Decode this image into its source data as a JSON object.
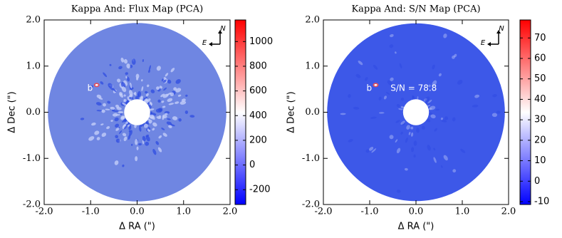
{
  "chart_data": [
    {
      "type": "image",
      "title": "Kappa And: Flux Map (PCA)",
      "xlabel": "Δ RA (\")",
      "ylabel": "Δ Dec (\")",
      "xlim": [
        -2,
        2
      ],
      "ylim": [
        -2,
        2
      ],
      "xticks": [
        {
          "value": -2,
          "label": "-2.0"
        },
        {
          "value": -1,
          "label": "-1.0"
        },
        {
          "value": 0,
          "label": "0.0"
        },
        {
          "value": 1,
          "label": "1.0"
        },
        {
          "value": 2,
          "label": "2.0"
        }
      ],
      "yticks": [
        {
          "value": -2,
          "label": "-2.0"
        },
        {
          "value": -1,
          "label": "-1.0"
        },
        {
          "value": 0,
          "label": "0.0"
        },
        {
          "value": 1,
          "label": "1.0"
        },
        {
          "value": 2,
          "label": "2.0"
        }
      ],
      "color": "#6f86e2",
      "colormap": [
        "#0000ff",
        "#ffffff",
        "#ff0000"
      ],
      "clim": [
        -320,
        1175
      ],
      "cticks": [
        -200,
        0,
        200,
        400,
        600,
        800,
        1000
      ],
      "annotations": [
        {
          "text": "b",
          "x": -1.07,
          "y": 0.52
        }
      ],
      "compass": {
        "north": "N",
        "east": "E"
      }
    },
    {
      "type": "image",
      "title": "Kappa And: S/N Map (PCA)",
      "xlabel": "Δ RA (\")",
      "ylabel": "Δ Dec (\")",
      "xlim": [
        -2,
        2
      ],
      "ylim": [
        -2,
        2
      ],
      "xticks": [
        {
          "value": -2,
          "label": "-2.0"
        },
        {
          "value": -1,
          "label": "-1.0"
        },
        {
          "value": 0,
          "label": "0.0"
        },
        {
          "value": 1,
          "label": "1.0"
        },
        {
          "value": 2,
          "label": "2.0"
        }
      ],
      "yticks": [
        {
          "value": -2,
          "label": "-2.0"
        },
        {
          "value": -1,
          "label": "-1.0"
        },
        {
          "value": 0,
          "label": "0.0"
        },
        {
          "value": 1,
          "label": "1.0"
        },
        {
          "value": 2,
          "label": "2.0"
        }
      ],
      "color": "#3d58e8",
      "colormap": [
        "#0000ff",
        "#ffffff",
        "#ff0000"
      ],
      "clim": [
        -11.4,
        78.8
      ],
      "cticks": [
        -10,
        0,
        10,
        20,
        30,
        40,
        50,
        60,
        70
      ],
      "annotations": [
        {
          "text": "b",
          "x": -1.07,
          "y": 0.52
        },
        {
          "text": "S/N = 78.8",
          "x": -0.55,
          "y": 0.52
        }
      ],
      "compass": {
        "north": "N",
        "east": "E"
      }
    }
  ]
}
